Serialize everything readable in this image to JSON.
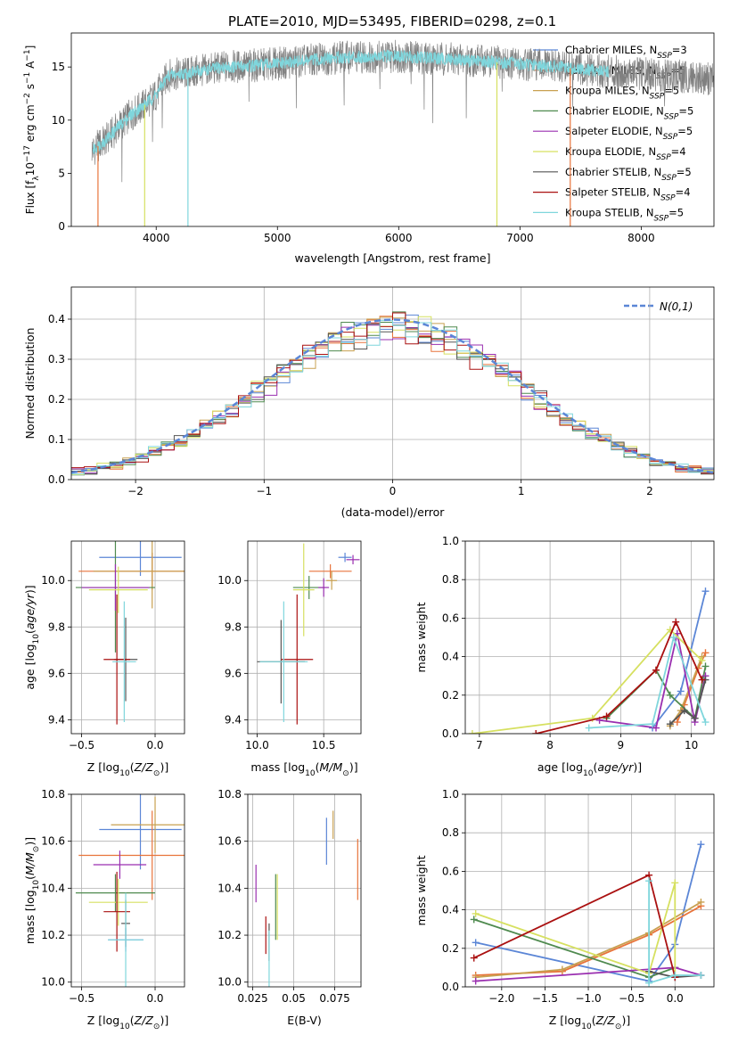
{
  "figure_title": "PLATE=2010, MJD=53495, FIBERID=0298, z=0.1",
  "series_styles": [
    {
      "name": "Chabrier MILES",
      "nssp": "3",
      "color": "#5b86d6"
    },
    {
      "name": "Salpeter MILES",
      "nssp": "5",
      "color": "#e8743b"
    },
    {
      "name": "Kroupa MILES",
      "nssp": "5",
      "color": "#c8a050"
    },
    {
      "name": "Chabrier ELODIE",
      "nssp": "5",
      "color": "#4f8a4f"
    },
    {
      "name": "Salpeter ELODIE",
      "nssp": "5",
      "color": "#9a2fb0"
    },
    {
      "name": "Kroupa ELODIE",
      "nssp": "4",
      "color": "#d6e060"
    },
    {
      "name": "Chabrier STELIB",
      "nssp": "5",
      "color": "#555555"
    },
    {
      "name": "Salpeter STELIB",
      "nssp": "4",
      "color": "#aa1010"
    },
    {
      "name": "Kroupa STELIB",
      "nssp": "5",
      "color": "#7fd6dc"
    }
  ],
  "chart_data": [
    {
      "id": "spectrum",
      "type": "line",
      "xlabel": "wavelength [Angstrom, rest frame]",
      "ylabel": "Flux [f_λ10^-17 erg cm^-2 s^-1 A^-1]",
      "xlim": [
        3300,
        8600
      ],
      "ylim": [
        0,
        18.2
      ],
      "xticks": [
        4000,
        5000,
        6000,
        7000,
        8000
      ],
      "yticks": [
        0,
        5,
        10,
        15
      ],
      "legend_position": "right",
      "observed_color": "#808080",
      "model_color": "#7fd6dc",
      "continuum_knots": [
        [
          3480,
          7.2
        ],
        [
          3600,
          8.3
        ],
        [
          3700,
          9.5
        ],
        [
          3800,
          10.6
        ],
        [
          3900,
          11.4
        ],
        [
          4000,
          12.4
        ],
        [
          4100,
          14.2
        ],
        [
          4300,
          14.5
        ],
        [
          4500,
          14.9
        ],
        [
          5000,
          15.3
        ],
        [
          5500,
          15.9
        ],
        [
          6000,
          16.0
        ],
        [
          6500,
          15.7
        ],
        [
          7000,
          15.3
        ],
        [
          7500,
          14.8
        ],
        [
          7700,
          14.6
        ]
      ],
      "observed_range": [
        3470,
        8600
      ],
      "model_range": [
        3480,
        7730
      ],
      "spikes": [
        {
          "x": 3520,
          "y": 0,
          "color": "#e8743b"
        },
        {
          "x": 3905,
          "y": 0,
          "color": "#d6e060"
        },
        {
          "x": 4262,
          "y": 0,
          "color": "#7fd6dc"
        },
        {
          "x": 6810,
          "y": 0,
          "color": "#d6e060"
        },
        {
          "x": 7415,
          "y": 0,
          "color": "#e8743b"
        }
      ]
    },
    {
      "id": "residuals",
      "type": "histogram",
      "xlabel": "(data-model)/error",
      "ylabel": "Normed distribution",
      "xlim": [
        -2.5,
        2.5
      ],
      "ylim": [
        0,
        0.48
      ],
      "xticks": [
        -2,
        -1,
        0,
        1,
        2
      ],
      "yticks": [
        0.0,
        0.1,
        0.2,
        0.3,
        0.4
      ],
      "grid": true,
      "bins": 50,
      "reference_curve": {
        "label": "N(0,1)",
        "color": "#5b86d6",
        "style": "dashed"
      },
      "legend_position": "top-right"
    },
    {
      "id": "age-vs-z",
      "type": "errorbar",
      "xlabel": "Z [log10(Z/Z☉)]",
      "ylabel": "age  [log10(age/yr)]",
      "xlim": [
        -0.57,
        0.2
      ],
      "ylim": [
        9.34,
        10.17
      ],
      "xticks": [
        -0.5,
        0.0
      ],
      "yticks": [
        9.4,
        9.6,
        9.8,
        10.0
      ],
      "grid": true,
      "points": [
        {
          "s": 0,
          "x": -0.1,
          "y": 10.1,
          "xerr": 0.28,
          "yerr": 0.08
        },
        {
          "s": 1,
          "x": -0.02,
          "y": 10.04,
          "xerr": 0.5,
          "yerr": 0.08
        },
        {
          "s": 2,
          "x": -0.02,
          "y": 10.04,
          "xerr": 0.4,
          "yerr": 0.16
        },
        {
          "s": 3,
          "x": -0.27,
          "y": 9.97,
          "xerr": 0.27,
          "yerr": 0.28
        },
        {
          "s": 4,
          "x": -0.27,
          "y": 9.97,
          "xerr": 0.23,
          "yerr": 0.1
        },
        {
          "s": 5,
          "x": -0.25,
          "y": 9.96,
          "xerr": 0.2,
          "yerr": 0.1
        },
        {
          "s": 6,
          "x": -0.2,
          "y": 9.66,
          "xerr": 0.08,
          "yerr": 0.18
        },
        {
          "s": 7,
          "x": -0.26,
          "y": 9.66,
          "xerr": 0.09,
          "yerr": 0.28
        },
        {
          "s": 8,
          "x": -0.21,
          "y": 9.65,
          "xerr": 0.08,
          "yerr": 0.26
        }
      ]
    },
    {
      "id": "age-vs-mass",
      "type": "errorbar",
      "xlabel": "mass [log10(M/M☉)]",
      "ylabel": "",
      "xlim": [
        9.93,
        10.78
      ],
      "ylim": [
        9.34,
        10.17
      ],
      "xticks": [
        10.0,
        10.5
      ],
      "yticks": [
        9.4,
        9.6,
        9.8,
        10.0
      ],
      "grid": true,
      "points": [
        {
          "s": 0,
          "x": 10.66,
          "y": 10.1,
          "xerr": 0.05,
          "yerr": 0.02
        },
        {
          "s": 1,
          "x": 10.55,
          "y": 10.04,
          "xerr": 0.16,
          "yerr": 0.03
        },
        {
          "s": 2,
          "x": 10.56,
          "y": 10.0,
          "xerr": 0.04,
          "yerr": 0.04
        },
        {
          "s": 3,
          "x": 10.39,
          "y": 9.97,
          "xerr": 0.12,
          "yerr": 0.05
        },
        {
          "s": 4,
          "x": 10.5,
          "y": 9.97,
          "xerr": 0.04,
          "yerr": 0.04
        },
        {
          "s": 5,
          "x": 10.35,
          "y": 9.96,
          "xerr": 0.08,
          "yerr": 0.2
        },
        {
          "s": 6,
          "x": 10.18,
          "y": 9.65,
          "xerr": 0.18,
          "yerr": 0.18
        },
        {
          "s": 7,
          "x": 10.3,
          "y": 9.66,
          "xerr": 0.12,
          "yerr": 0.28
        },
        {
          "s": 8,
          "x": 10.2,
          "y": 9.65,
          "xerr": 0.18,
          "yerr": 0.26
        }
      ],
      "extra_points": [
        {
          "s": 4,
          "x": 10.72,
          "y": 10.09,
          "xerr": 0.05,
          "yerr": 0.02
        }
      ]
    },
    {
      "id": "mass-weight-vs-age",
      "type": "line",
      "xlabel": "age  [log10(age/yr)]",
      "ylabel": "mass weight",
      "xlim": [
        6.8,
        10.32
      ],
      "ylim": [
        0,
        1.0
      ],
      "xticks": [
        7,
        8,
        9,
        10
      ],
      "yticks": [
        0.0,
        0.2,
        0.4,
        0.6,
        0.8,
        1.0
      ],
      "grid": true,
      "series": [
        {
          "s": 0,
          "x": [
            9.45,
            9.85,
            10.2
          ],
          "y": [
            0.03,
            0.22,
            0.74
          ]
        },
        {
          "s": 1,
          "x": [
            9.8,
            9.9,
            10.1,
            10.2
          ],
          "y": [
            0.06,
            0.15,
            0.34,
            0.42
          ]
        },
        {
          "s": 2,
          "x": [
            9.7,
            9.85,
            10.15
          ],
          "y": [
            0.04,
            0.12,
            0.4
          ]
        },
        {
          "s": 3,
          "x": [
            8.8,
            9.5,
            9.7,
            10.05,
            10.2
          ],
          "y": [
            0.08,
            0.33,
            0.2,
            0.08,
            0.35
          ]
        },
        {
          "s": 4,
          "x": [
            8.7,
            9.5,
            9.8,
            10.05,
            10.2
          ],
          "y": [
            0.07,
            0.03,
            0.52,
            0.06,
            0.3
          ]
        },
        {
          "s": 5,
          "x": [
            6.9,
            8.6,
            9.7,
            10.15
          ],
          "y": [
            0.0,
            0.08,
            0.54,
            0.38
          ]
        },
        {
          "s": 6,
          "x": [
            9.7,
            9.9,
            10.05,
            10.2
          ],
          "y": [
            0.05,
            0.12,
            0.08,
            0.28
          ]
        },
        {
          "s": 7,
          "x": [
            7.8,
            8.8,
            9.5,
            9.78,
            10.15
          ],
          "y": [
            0.0,
            0.09,
            0.33,
            0.58,
            0.28
          ]
        },
        {
          "s": 8,
          "x": [
            8.55,
            9.45,
            9.75,
            10.2
          ],
          "y": [
            0.03,
            0.05,
            0.5,
            0.06
          ]
        }
      ]
    },
    {
      "id": "mass-vs-z",
      "type": "errorbar",
      "xlabel": "Z [log10(Z/Z☉)]",
      "ylabel": "mass [log10(M/M☉)]",
      "xlim": [
        -0.57,
        0.2
      ],
      "ylim": [
        9.98,
        10.8
      ],
      "xticks": [
        -0.5,
        0.0
      ],
      "yticks": [
        10.0,
        10.2,
        10.4,
        10.6,
        10.8
      ],
      "grid": true,
      "points": [
        {
          "s": 0,
          "x": -0.1,
          "y": 10.65,
          "xerr": 0.28,
          "yerr": 0.17
        },
        {
          "s": 1,
          "x": -0.02,
          "y": 10.54,
          "xerr": 0.5,
          "yerr": 0.19
        },
        {
          "s": 4,
          "x": -0.24,
          "y": 10.5,
          "xerr": 0.18,
          "yerr": 0.06
        },
        {
          "s": 3,
          "x": -0.27,
          "y": 10.38,
          "xerr": 0.27,
          "yerr": 0.08
        },
        {
          "s": 5,
          "x": -0.25,
          "y": 10.34,
          "xerr": 0.2,
          "yerr": 0.1
        },
        {
          "s": 7,
          "x": -0.26,
          "y": 10.3,
          "xerr": 0.09,
          "yerr": 0.17
        },
        {
          "s": 6,
          "x": -0.2,
          "y": 10.25,
          "xerr": 0.03,
          "yerr": 0.1
        },
        {
          "s": 0,
          "x": -0.2,
          "y": 10.18,
          "xerr": 0.12,
          "yerr": 0.05
        },
        {
          "s": 8,
          "x": -0.2,
          "y": 10.18,
          "xerr": 0.12,
          "yerr": 0.2
        },
        {
          "s": 2,
          "x": 0.0,
          "y": 10.67,
          "xerr": 0.3,
          "yerr": 0.12
        }
      ]
    },
    {
      "id": "mass-vs-ebv",
      "type": "errorbar",
      "xlabel": "E(B-V)",
      "ylabel": "",
      "xlim": [
        0.022,
        0.091
      ],
      "ylim": [
        9.98,
        10.8
      ],
      "xticks": [
        0.025,
        0.05,
        0.075
      ],
      "yticks": [
        10.0,
        10.2,
        10.4,
        10.6,
        10.8
      ],
      "grid": true,
      "points": [
        {
          "s": 4,
          "x": 0.027,
          "y": 10.42,
          "xerr": 0,
          "yerr": 0.08
        },
        {
          "s": 7,
          "x": 0.033,
          "y": 10.2,
          "xerr": 0,
          "yerr": 0.08
        },
        {
          "s": 6,
          "x": 0.035,
          "y": 10.17,
          "xerr": 0,
          "yerr": 0.08
        },
        {
          "s": 8,
          "x": 0.035,
          "y": 10.1,
          "xerr": 0,
          "yerr": 0.12
        },
        {
          "s": 3,
          "x": 0.039,
          "y": 10.32,
          "xerr": 0,
          "yerr": 0.14
        },
        {
          "s": 5,
          "x": 0.04,
          "y": 10.32,
          "xerr": 0,
          "yerr": 0.14
        },
        {
          "s": 0,
          "x": 0.07,
          "y": 10.6,
          "xerr": 0,
          "yerr": 0.1
        },
        {
          "s": 2,
          "x": 0.074,
          "y": 10.67,
          "xerr": 0,
          "yerr": 0.06
        },
        {
          "s": 1,
          "x": 0.089,
          "y": 10.48,
          "xerr": 0,
          "yerr": 0.13
        }
      ]
    },
    {
      "id": "mass-weight-vs-z",
      "type": "line",
      "xlabel": "Z [log10(Z/Z☉)]",
      "ylabel": "mass weight",
      "xlim": [
        -2.42,
        0.45
      ],
      "ylim": [
        0,
        1.0
      ],
      "xticks": [
        -2.0,
        -1.5,
        -1.0,
        -0.5,
        0.0
      ],
      "yticks": [
        0.0,
        0.2,
        0.4,
        0.6,
        0.8,
        1.0
      ],
      "grid": true,
      "series": [
        {
          "s": 0,
          "x": [
            -2.3,
            -0.3,
            0.0,
            0.3
          ],
          "y": [
            0.23,
            0.03,
            0.22,
            0.74
          ]
        },
        {
          "s": 1,
          "x": [
            -2.3,
            -1.3,
            -0.3,
            0.3
          ],
          "y": [
            0.06,
            0.08,
            0.27,
            0.42
          ]
        },
        {
          "s": 2,
          "x": [
            -2.3,
            -1.3,
            -0.3,
            0.3
          ],
          "y": [
            0.05,
            0.09,
            0.28,
            0.44
          ]
        },
        {
          "s": 3,
          "x": [
            -2.32,
            -0.3,
            0.0
          ],
          "y": [
            0.35,
            0.05,
            0.1
          ]
        },
        {
          "s": 4,
          "x": [
            -2.3,
            0.0,
            0.3
          ],
          "y": [
            0.03,
            0.1,
            0.06
          ]
        },
        {
          "s": 5,
          "x": [
            -2.3,
            -0.3,
            0.0,
            0.0
          ],
          "y": [
            0.38,
            0.07,
            0.54,
            0.06
          ]
        },
        {
          "s": 6,
          "x": [
            -0.3,
            0.0,
            0.3
          ],
          "y": [
            0.08,
            0.05,
            0.06
          ]
        },
        {
          "s": 7,
          "x": [
            -2.32,
            -0.3,
            0.0
          ],
          "y": [
            0.15,
            0.58,
            0.05
          ]
        },
        {
          "s": 8,
          "x": [
            -0.3,
            -0.3,
            0.0,
            0.3
          ],
          "y": [
            0.55,
            0.02,
            0.06,
            0.06
          ]
        }
      ]
    }
  ]
}
